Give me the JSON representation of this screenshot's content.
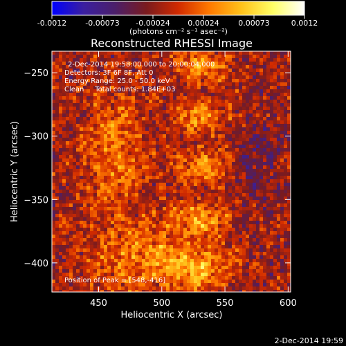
{
  "chart_data": {
    "type": "heatmap",
    "title": "Reconstructed RHESSI Image",
    "xlabel": "Heliocentric X (arcsec)",
    "ylabel": "Heliocentric Y (arcsec)",
    "xlim": [
      413,
      602
    ],
    "ylim": [
      -423,
      -233
    ],
    "x_ticks": [
      450,
      500,
      550,
      600
    ],
    "y_ticks": [
      -250,
      -300,
      -350,
      -400
    ],
    "colorbar": {
      "range": [
        -0.0012,
        0.0012
      ],
      "ticks": [
        "-0.0012",
        "-0.00073",
        "-0.00024",
        "0.00024",
        "0.00073",
        "0.0012"
      ],
      "units_label": "(photons cm⁻² s⁻¹ asec⁻²)",
      "colormap": [
        "#0000ff",
        "#3a1fa0",
        "#4b1f6a",
        "#7a1b1e",
        "#d12a00",
        "#ff7a00",
        "#ffc21a",
        "#ffff66",
        "#ffffff"
      ]
    },
    "annotations": {
      "time_range": "2-Dec-2014 19:58:00.000 to 20:00:04.000",
      "detectors": "Detectors: 3F 6F 8F, Att 0",
      "energy_range": "Energy Range: 25.0 - 50.0 keV",
      "method": "Clean     Total counts: 1.84E+03",
      "peak": "Position of Peak = [548,-416]"
    },
    "peak_position": [
      548,
      -416
    ],
    "grid": false,
    "timestamp": "2-Dec-2014 19:59"
  }
}
